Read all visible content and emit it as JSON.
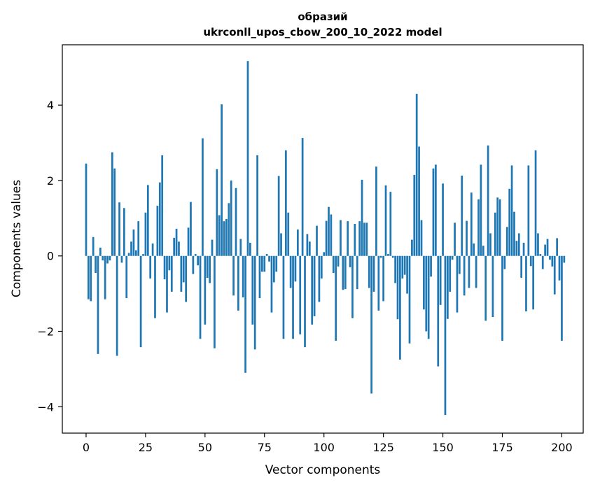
{
  "chart_data": {
    "type": "bar",
    "title": "образий",
    "subtitle": "ukrconll_upos_cbow_200_10_2022 model",
    "xlabel": "Vector components",
    "ylabel": "Components values",
    "xlim": [
      -10,
      209
    ],
    "ylim": [
      -4.7,
      5.6
    ],
    "xticks": [
      0,
      25,
      50,
      75,
      100,
      125,
      150,
      175,
      200
    ],
    "yticks": [
      -4,
      -2,
      0,
      2,
      4
    ],
    "grid": false,
    "bar_color": "#1f77b4",
    "values": [
      2.45,
      -1.15,
      -1.2,
      0.5,
      -0.45,
      -2.6,
      0.22,
      -0.12,
      -1.15,
      -0.2,
      -0.12,
      2.75,
      2.32,
      -2.65,
      1.42,
      -0.18,
      1.27,
      -1.12,
      0.08,
      0.38,
      0.7,
      0.15,
      0.92,
      -2.42,
      0.05,
      1.15,
      1.88,
      -0.6,
      0.33,
      -1.65,
      1.33,
      1.95,
      2.67,
      -0.62,
      -1.5,
      -0.38,
      -0.95,
      0.48,
      0.72,
      0.38,
      -0.95,
      -0.7,
      -1.22,
      0.75,
      1.43,
      -0.48,
      0.05,
      -0.25,
      -2.2,
      3.12,
      -1.82,
      -0.58,
      -0.72,
      0.43,
      -2.45,
      2.3,
      1.08,
      4.02,
      0.92,
      0.98,
      1.4,
      2.0,
      -1.05,
      1.8,
      -1.45,
      0.45,
      -1.1,
      -3.1,
      5.17,
      0.35,
      -1.82,
      -2.48,
      2.67,
      -1.12,
      -0.42,
      -0.42,
      0.05,
      -0.15,
      -1.5,
      -0.7,
      -0.42,
      2.12,
      0.6,
      -2.2,
      2.8,
      1.15,
      -0.85,
      -2.2,
      -0.68,
      0.7,
      -2.08,
      3.13,
      -2.42,
      0.58,
      0.38,
      -1.82,
      -1.6,
      0.8,
      -1.22,
      -0.6,
      0.1,
      0.93,
      1.3,
      1.1,
      -0.45,
      -2.25,
      -0.28,
      0.95,
      -0.9,
      -0.88,
      0.92,
      -0.3,
      -1.65,
      0.85,
      -0.88,
      0.92,
      2.02,
      0.88,
      0.88,
      -0.85,
      -3.65,
      -0.95,
      2.37,
      -1.45,
      -0.05,
      -1.2,
      1.87,
      0.05,
      1.7,
      -0.05,
      -0.72,
      -1.68,
      -2.75,
      -0.6,
      -0.5,
      -1.0,
      -2.32,
      0.43,
      2.15,
      4.3,
      2.9,
      0.95,
      -1.42,
      -2.0,
      -2.2,
      -0.55,
      2.32,
      2.42,
      -2.93,
      -1.3,
      1.92,
      -4.22,
      -1.67,
      -0.95,
      -0.1,
      0.88,
      -1.5,
      -0.48,
      2.13,
      -1.05,
      0.93,
      -0.85,
      1.68,
      0.33,
      -0.85,
      1.5,
      2.42,
      0.27,
      -1.72,
      2.93,
      0.6,
      -1.62,
      1.15,
      1.55,
      1.5,
      -2.25,
      -0.35,
      0.77,
      1.78,
      2.4,
      1.17,
      0.4,
      0.6,
      -0.58,
      0.35,
      -1.47,
      2.4,
      -0.27,
      -1.42,
      2.8,
      0.6,
      0.05,
      -0.35,
      0.3,
      0.45,
      -0.1,
      -0.28,
      -1.02,
      0.47,
      -0.65,
      -2.25,
      -0.18
    ]
  }
}
